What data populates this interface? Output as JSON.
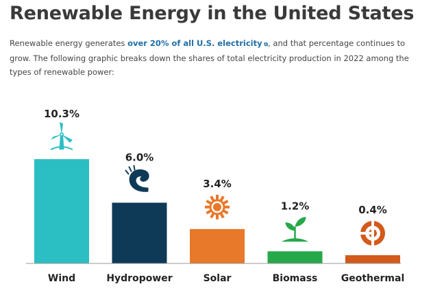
{
  "page": {
    "title": "Renewable Energy in the United States",
    "intro_before": "Renewable energy generates ",
    "intro_link": "over 20% of all U.S. electricity",
    "intro_after": ", and that percentage continues to grow. The following graphic breaks down the shares of total electricity production in 2022 among the types of renewable power:"
  },
  "colors": {
    "wind": "#2bbfc4",
    "hydropower": "#0e3a57",
    "solar": "#e8782a",
    "biomass": "#27a84a",
    "geothermal": "#d35a1b",
    "axis": "#9a9a9a"
  },
  "chart_data": {
    "type": "bar",
    "title": "",
    "xlabel": "",
    "ylabel": "",
    "ylim": [
      0,
      10.3
    ],
    "categories": [
      "Wind",
      "Hydropower",
      "Solar",
      "Biomass",
      "Geothermal"
    ],
    "values": [
      10.3,
      6.0,
      3.4,
      1.2,
      0.4
    ],
    "labels": [
      "10.3%",
      "6.0%",
      "3.4%",
      "1.2%",
      "0.4%"
    ],
    "icons": [
      "wind-turbine-icon",
      "wave-icon",
      "sun-icon",
      "sprout-icon",
      "geothermal-icon"
    ]
  }
}
